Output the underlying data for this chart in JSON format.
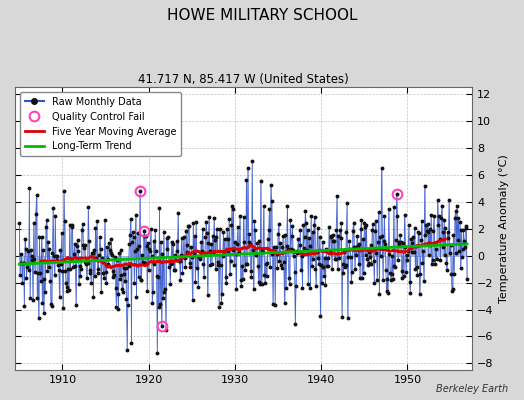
{
  "title": "HOWE MILITARY SCHOOL",
  "subtitle": "41.717 N, 85.417 W (United States)",
  "ylabel": "Temperature Anomaly (°C)",
  "credit": "Berkeley Earth",
  "ylim": [
    -8.5,
    12.5
  ],
  "yticks": [
    -8,
    -6,
    -4,
    -2,
    0,
    2,
    4,
    6,
    8,
    10,
    12
  ],
  "xlim": [
    1904.5,
    1957.5
  ],
  "xticks": [
    1910,
    1920,
    1930,
    1940,
    1950
  ],
  "bg_color": "#d8d8d8",
  "plot_bg_color": "#ffffff",
  "raw_line_color": "#3355cc",
  "raw_fill_color": "#8899dd",
  "raw_marker_color": "#111111",
  "moving_avg_color": "#dd0000",
  "trend_color": "#00bb00",
  "qc_fail_color": "#ff44bb",
  "start_year": 1905.0,
  "end_year": 1957.0,
  "seed": 7
}
